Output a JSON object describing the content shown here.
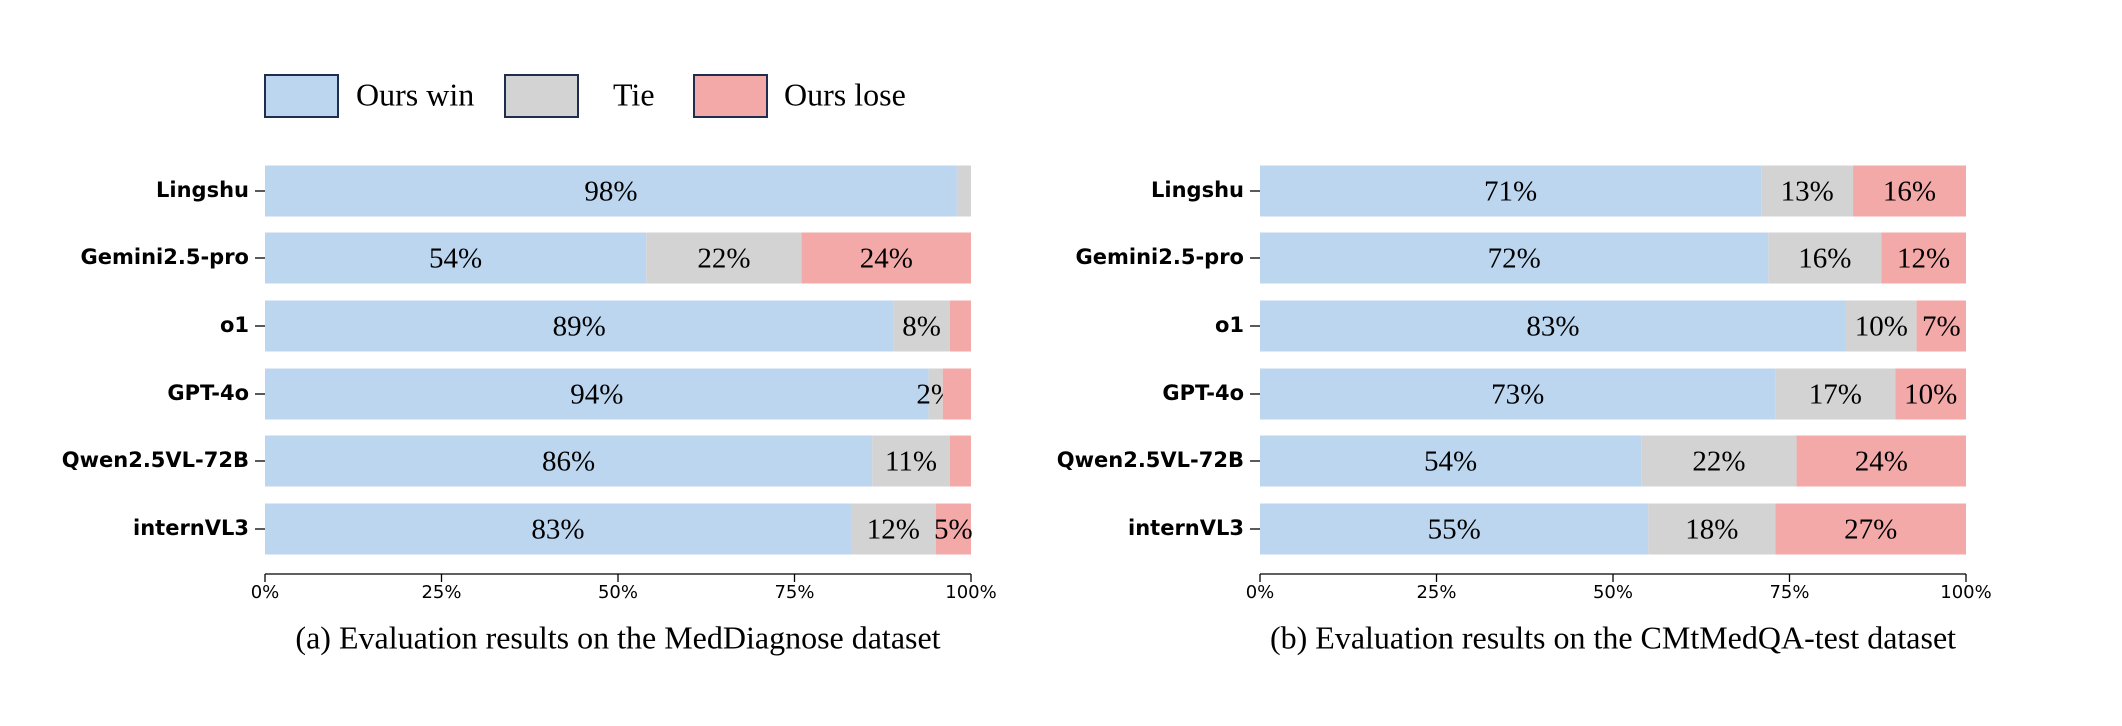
{
  "chart_data": [
    {
      "type": "stacked-barh",
      "caption": "(a) Evaluation results on the MedDiagnose dataset",
      "categories": [
        "Lingshu",
        "Gemini2.5-pro",
        "o1",
        "GPT-4o",
        "Qwen2.5VL-72B",
        "internVL3"
      ],
      "series": [
        {
          "name": "Ours win",
          "color": "#bcd6f0",
          "values": [
            98,
            54,
            89,
            94,
            86,
            83
          ],
          "value_labels": [
            "98%",
            "54%",
            "89%",
            "94%",
            "86%",
            "83%"
          ]
        },
        {
          "name": "Tie",
          "color": "#d3d3d3",
          "values": [
            2,
            22,
            8,
            2,
            11,
            12
          ],
          "value_labels": [
            null,
            "22%",
            "8%",
            "2%",
            "11%",
            "12%"
          ]
        },
        {
          "name": "Ours lose",
          "color": "#f4a9a9",
          "values": [
            0,
            24,
            3,
            4,
            3,
            5
          ],
          "value_labels": [
            null,
            "24%",
            null,
            null,
            null,
            "5%"
          ]
        }
      ],
      "xlim": [
        0,
        100
      ],
      "xticks": [
        {
          "value": 0,
          "label": "0%"
        },
        {
          "value": 25,
          "label": "25%"
        },
        {
          "value": 50,
          "label": "50%"
        },
        {
          "value": 75,
          "label": "75%"
        },
        {
          "value": 100,
          "label": "100%"
        }
      ]
    },
    {
      "type": "stacked-barh",
      "caption": "(b) Evaluation results on the CMtMedQA-test dataset",
      "categories": [
        "Lingshu",
        "Gemini2.5-pro",
        "o1",
        "GPT-4o",
        "Qwen2.5VL-72B",
        "internVL3"
      ],
      "series": [
        {
          "name": "Ours win",
          "color": "#bcd6f0",
          "values": [
            71,
            72,
            83,
            73,
            54,
            55
          ],
          "value_labels": [
            "71%",
            "72%",
            "83%",
            "73%",
            "54%",
            "55%"
          ]
        },
        {
          "name": "Tie",
          "color": "#d3d3d3",
          "values": [
            13,
            16,
            10,
            17,
            22,
            18
          ],
          "value_labels": [
            "13%",
            "16%",
            "10%",
            "17%",
            "22%",
            "18%"
          ]
        },
        {
          "name": "Ours lose",
          "color": "#f4a9a9",
          "values": [
            16,
            12,
            7,
            10,
            24,
            27
          ],
          "value_labels": [
            "16%",
            "12%",
            "7%",
            "10%",
            "24%",
            "27%"
          ]
        }
      ],
      "xlim": [
        0,
        100
      ],
      "xticks": [
        {
          "value": 0,
          "label": "0%"
        },
        {
          "value": 25,
          "label": "25%"
        },
        {
          "value": 50,
          "label": "50%"
        },
        {
          "value": 75,
          "label": "75%"
        },
        {
          "value": 100,
          "label": "100%"
        }
      ]
    }
  ]
}
